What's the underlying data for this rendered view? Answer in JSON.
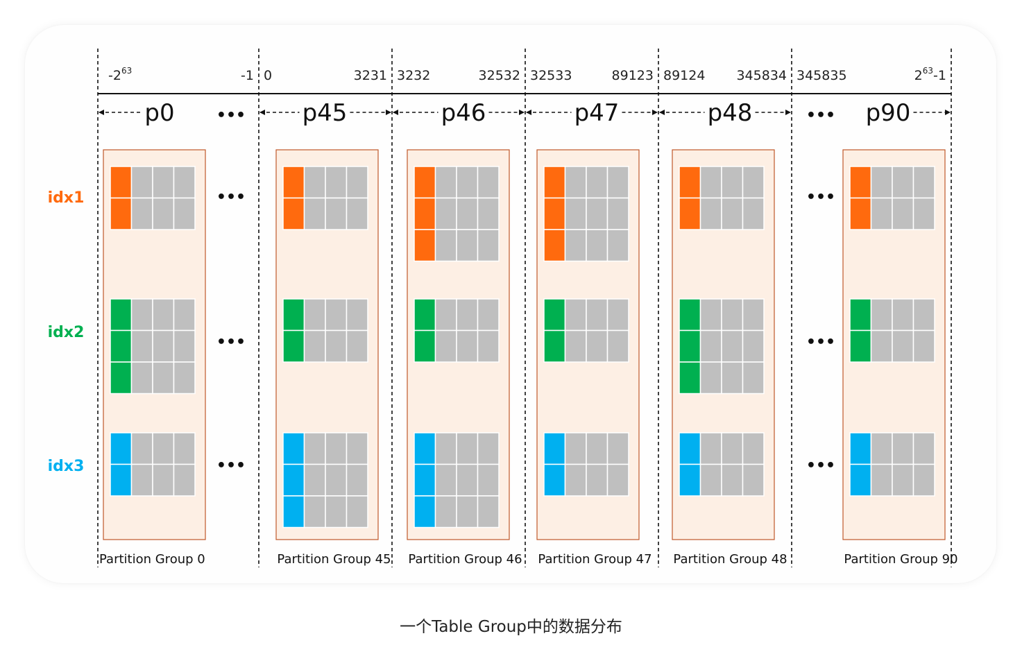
{
  "caption": "一个Table Group中的数据分布",
  "boundaries": [
    {
      "left": "-2",
      "left_sup": "63",
      "right": "-1",
      "right_sup": ""
    },
    {
      "left": "0",
      "left_sup": "",
      "right": "3231",
      "right_sup": ""
    },
    {
      "left": "3232",
      "left_sup": "",
      "right": "32532",
      "right_sup": ""
    },
    {
      "left": "32533",
      "left_sup": "",
      "right": "89123",
      "right_sup": ""
    },
    {
      "left": "89124",
      "left_sup": "",
      "right": "345834",
      "right_sup": ""
    },
    {
      "left": "345835",
      "left_sup": "",
      "right": "2",
      "right_sup": "63",
      "right_suffix": "-1"
    }
  ],
  "partitions": [
    {
      "label": "p0",
      "group": "Partition Group 0",
      "rows": {
        "idx1": 2,
        "idx2": 3,
        "idx3": 2
      }
    },
    {
      "label": "p45",
      "group": "Partition Group 45",
      "rows": {
        "idx1": 2,
        "idx2": 2,
        "idx3": 3
      }
    },
    {
      "label": "p46",
      "group": "Partition Group 46",
      "rows": {
        "idx1": 3,
        "idx2": 2,
        "idx3": 3
      }
    },
    {
      "label": "p47",
      "group": "Partition Group 47",
      "rows": {
        "idx1": 3,
        "idx2": 2,
        "idx3": 2
      }
    },
    {
      "label": "p48",
      "group": "Partition Group 48",
      "rows": {
        "idx1": 2,
        "idx2": 3,
        "idx3": 2
      }
    },
    {
      "label": "p90",
      "group": "Partition Group 90",
      "rows": {
        "idx1": 2,
        "idx2": 2,
        "idx3": 2
      }
    }
  ],
  "indexes": [
    {
      "name": "idx1",
      "color": "#ff6a0e"
    },
    {
      "name": "idx2",
      "color": "#00b050"
    },
    {
      "name": "idx3",
      "color": "#00b0f0"
    }
  ],
  "ellipsis": "•••",
  "colors": {
    "box_fill": "#fdefe4",
    "box_stroke": "#c0582a",
    "cell_gray": "#bfbfbf",
    "line": "#111111"
  }
}
